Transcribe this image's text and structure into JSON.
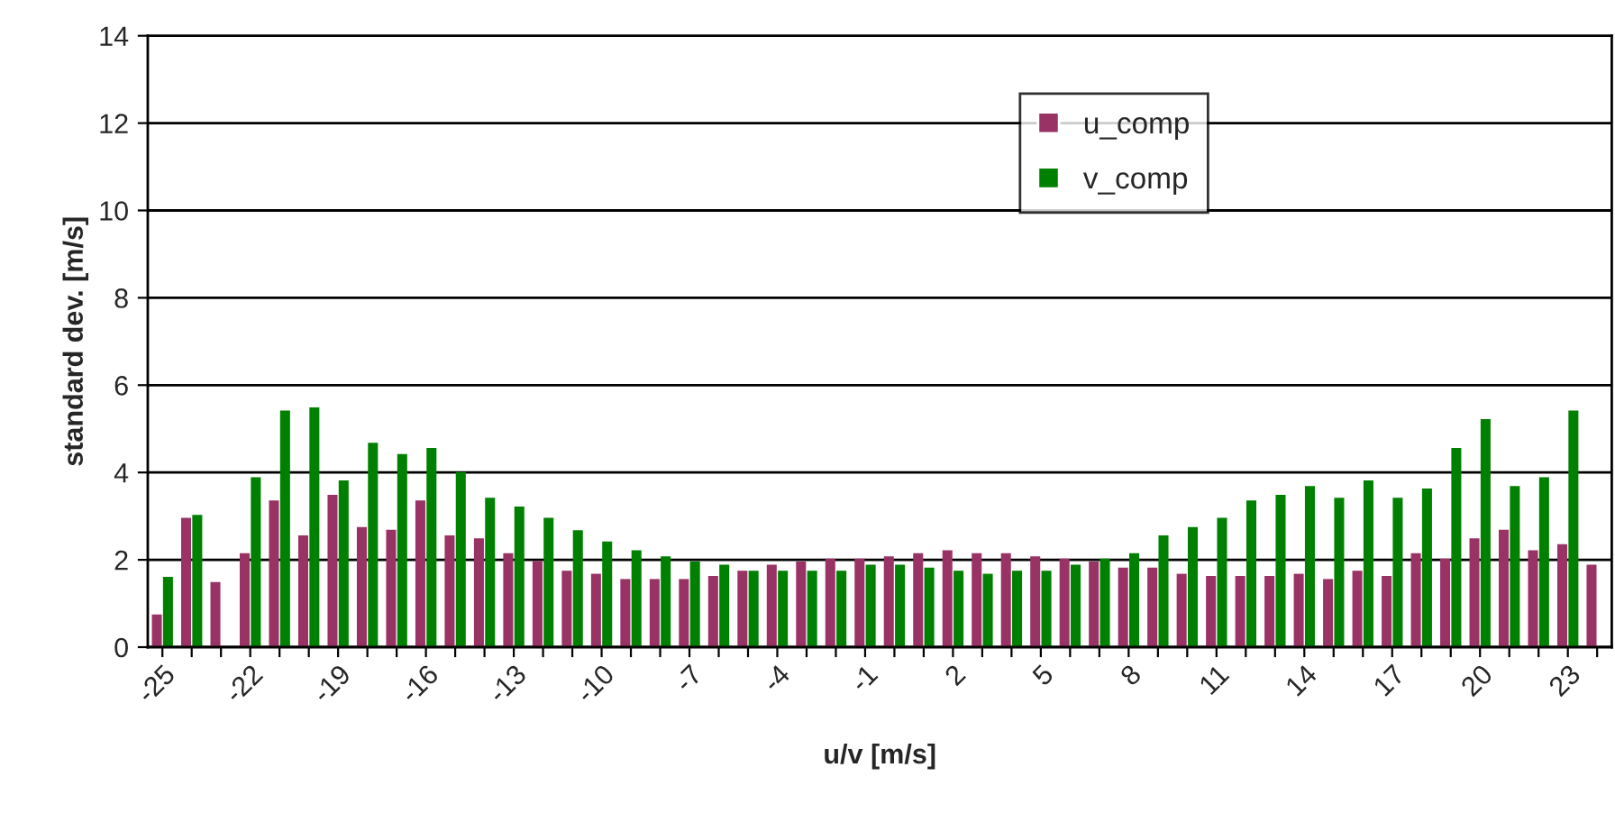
{
  "chart_data": {
    "type": "bar",
    "xlabel": "u/v [m/s]",
    "ylabel": "standard dev. [m/s]",
    "categories": [
      "-25",
      null,
      null,
      "-22",
      null,
      null,
      "-19",
      null,
      null,
      "-16",
      null,
      null,
      "-13",
      null,
      null,
      "-10",
      null,
      null,
      "-7",
      null,
      null,
      "-4",
      null,
      null,
      "-1",
      null,
      null,
      "2",
      null,
      null,
      "5",
      null,
      null,
      "8",
      null,
      null,
      "11",
      null,
      null,
      "14",
      null,
      null,
      "17",
      null,
      null,
      "20",
      null,
      null,
      "23",
      null
    ],
    "series": [
      {
        "name": "u_comp",
        "color": "#993366",
        "values": [
          0.75,
          2.96,
          1.49,
          2.15,
          3.36,
          2.56,
          3.49,
          2.75,
          2.69,
          3.36,
          2.56,
          2.49,
          2.15,
          1.97,
          1.75,
          1.68,
          1.56,
          1.56,
          1.56,
          1.63,
          1.75,
          1.89,
          1.96,
          2.03,
          2.03,
          2.08,
          2.15,
          2.22,
          2.15,
          2.15,
          2.08,
          2.03,
          1.96,
          1.82,
          1.82,
          1.68,
          1.63,
          1.63,
          1.63,
          1.68,
          1.56,
          1.75,
          1.63,
          2.15,
          2.03,
          2.49,
          2.69,
          2.22,
          2.36,
          1.89
        ]
      },
      {
        "name": "v_comp",
        "color": "#008000",
        "values": [
          1.61,
          3.03,
          null,
          3.89,
          5.42,
          5.49,
          3.82,
          4.68,
          4.42,
          4.56,
          4.01,
          3.42,
          3.22,
          2.96,
          2.68,
          2.42,
          2.22,
          2.08,
          1.96,
          1.89,
          1.75,
          1.75,
          1.75,
          1.75,
          1.89,
          1.89,
          1.82,
          1.75,
          1.68,
          1.75,
          1.75,
          1.89,
          2.03,
          2.15,
          2.56,
          2.75,
          2.96,
          3.36,
          3.49,
          3.69,
          3.42,
          3.82,
          3.42,
          3.63,
          4.56,
          5.22,
          3.69,
          3.89,
          5.42,
          null
        ]
      }
    ],
    "ylim": [
      0,
      14
    ],
    "yticks": [
      0,
      2,
      4,
      6,
      8,
      10,
      12,
      14
    ],
    "grid": "y",
    "legend": "top"
  }
}
